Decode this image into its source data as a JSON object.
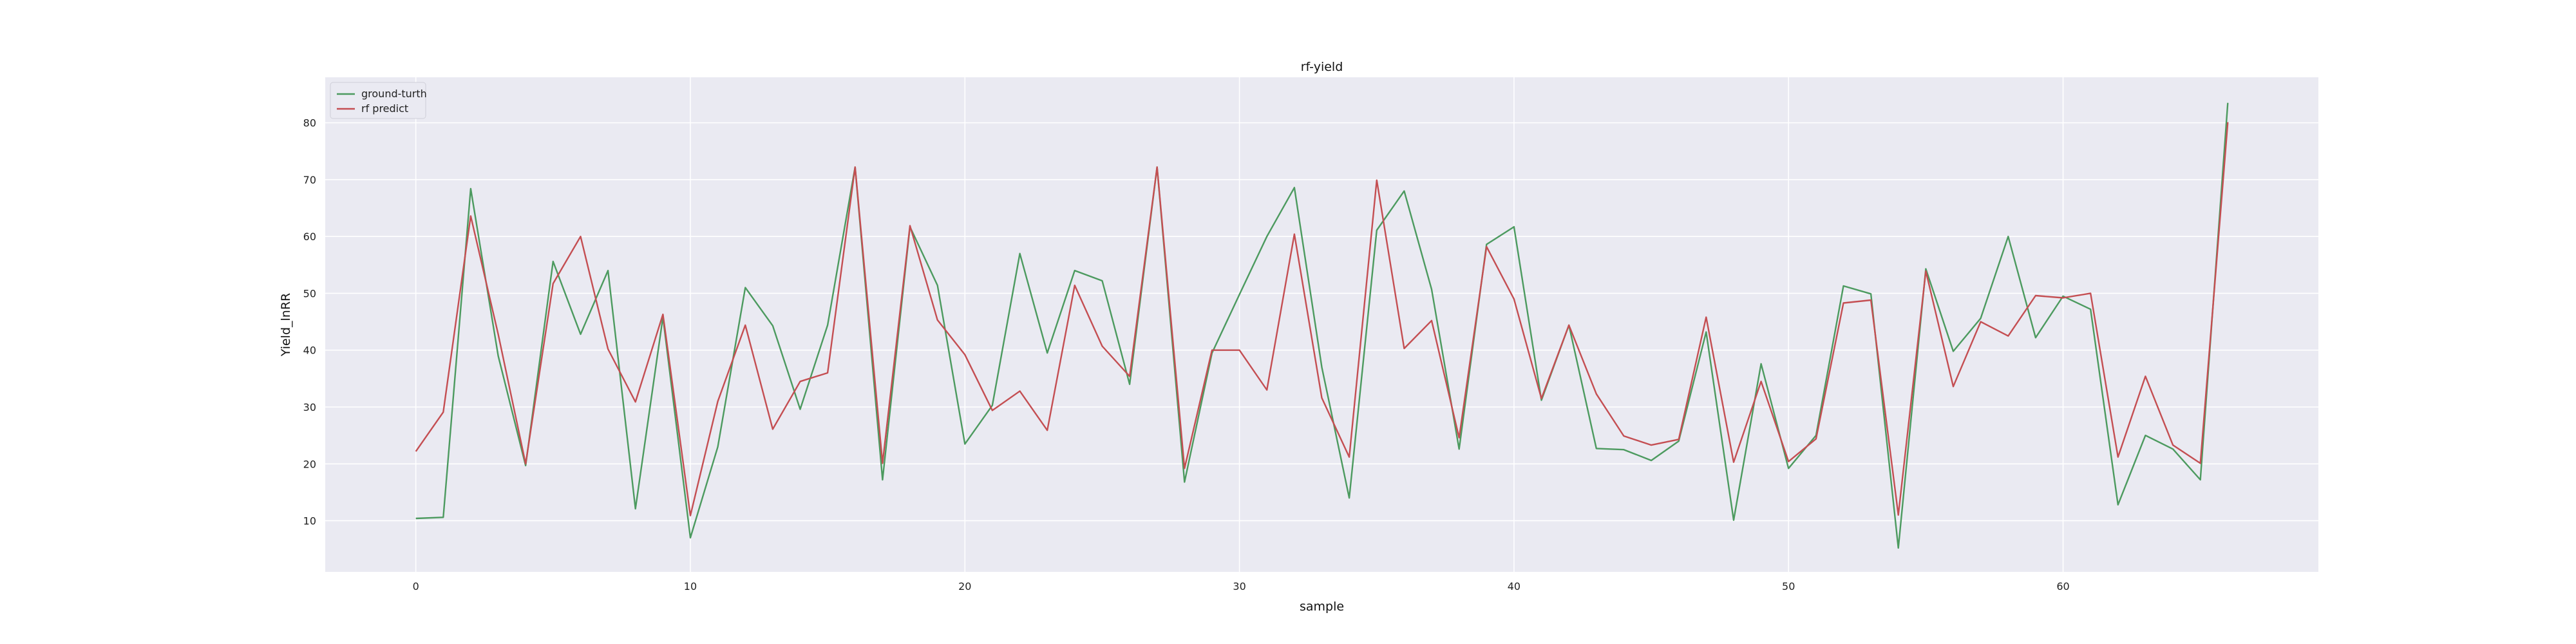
{
  "chart_data": {
    "type": "line",
    "title": "rf-yield",
    "xlabel": "sample",
    "ylabel": "Yield_lnRR",
    "xlim": [
      -3.3,
      69.3
    ],
    "ylim": [
      1,
      88
    ],
    "xticks": [
      0,
      10,
      20,
      30,
      40,
      50,
      60
    ],
    "yticks": [
      10,
      20,
      30,
      40,
      50,
      60,
      70,
      80
    ],
    "grid": true,
    "legend_position": "top-left",
    "x": [
      0,
      1,
      2,
      3,
      4,
      5,
      6,
      7,
      8,
      9,
      10,
      11,
      12,
      13,
      14,
      15,
      16,
      17,
      18,
      19,
      20,
      21,
      22,
      23,
      24,
      25,
      26,
      27,
      28,
      29,
      30,
      31,
      32,
      33,
      34,
      35,
      36,
      37,
      38,
      39,
      40,
      41,
      42,
      43,
      44,
      45,
      46,
      47,
      48,
      49,
      50,
      51,
      52,
      53,
      54,
      55,
      56,
      57,
      58,
      59,
      60,
      61,
      62,
      63,
      64,
      65,
      66
    ],
    "series": [
      {
        "name": "ground-turth",
        "color": "#4c9a5f",
        "values": [
          10.4,
          10.6,
          68.4,
          39,
          19.7,
          55.6,
          42.8,
          54,
          12.1,
          45.8,
          7,
          23,
          51,
          44.3,
          29.6,
          44.4,
          72.2,
          17.2,
          61.7,
          51.4,
          23.5,
          30.3,
          57,
          39.5,
          54,
          52.2,
          34,
          72.2,
          16.8,
          39.5,
          49.8,
          60,
          68.6,
          37,
          14,
          61.1,
          68,
          50.7,
          22.6,
          58.6,
          61.7,
          31.2,
          44.4,
          22.7,
          22.5,
          20.6,
          24,
          43.2,
          10.1,
          37.6,
          19.2,
          25,
          51.3,
          49.9,
          5.2,
          54.3,
          39.8,
          45.6,
          60,
          42.2,
          49.5,
          47.2,
          12.8,
          25,
          22.6,
          17.2,
          83.5
        ]
      },
      {
        "name": "rf predict",
        "color": "#c44e52",
        "values": [
          22.2,
          29.1,
          63.6,
          42.8,
          20,
          51.7,
          60,
          40.2,
          30.9,
          46.3,
          10.9,
          31,
          44.4,
          26.1,
          34.5,
          36,
          72.2,
          20.1,
          61.9,
          45.3,
          39.2,
          29.4,
          32.8,
          25.9,
          51.4,
          40.7,
          35.4,
          72.2,
          19.2,
          40,
          40,
          33,
          60.4,
          31.6,
          21.2,
          69.9,
          40.3,
          45.2,
          24.6,
          58.2,
          49,
          31.5,
          44.4,
          32.3,
          24.9,
          23.3,
          24.3,
          45.8,
          20.3,
          34.5,
          20.4,
          24.4,
          48.3,
          48.8,
          11,
          53.9,
          33.6,
          45,
          42.5,
          49.6,
          49.2,
          50,
          21.2,
          35.4,
          23.3,
          20.1,
          80.1
        ]
      }
    ]
  },
  "style": {
    "plot_bg": "#eaeaf2",
    "grid_color": "#ffffff"
  }
}
